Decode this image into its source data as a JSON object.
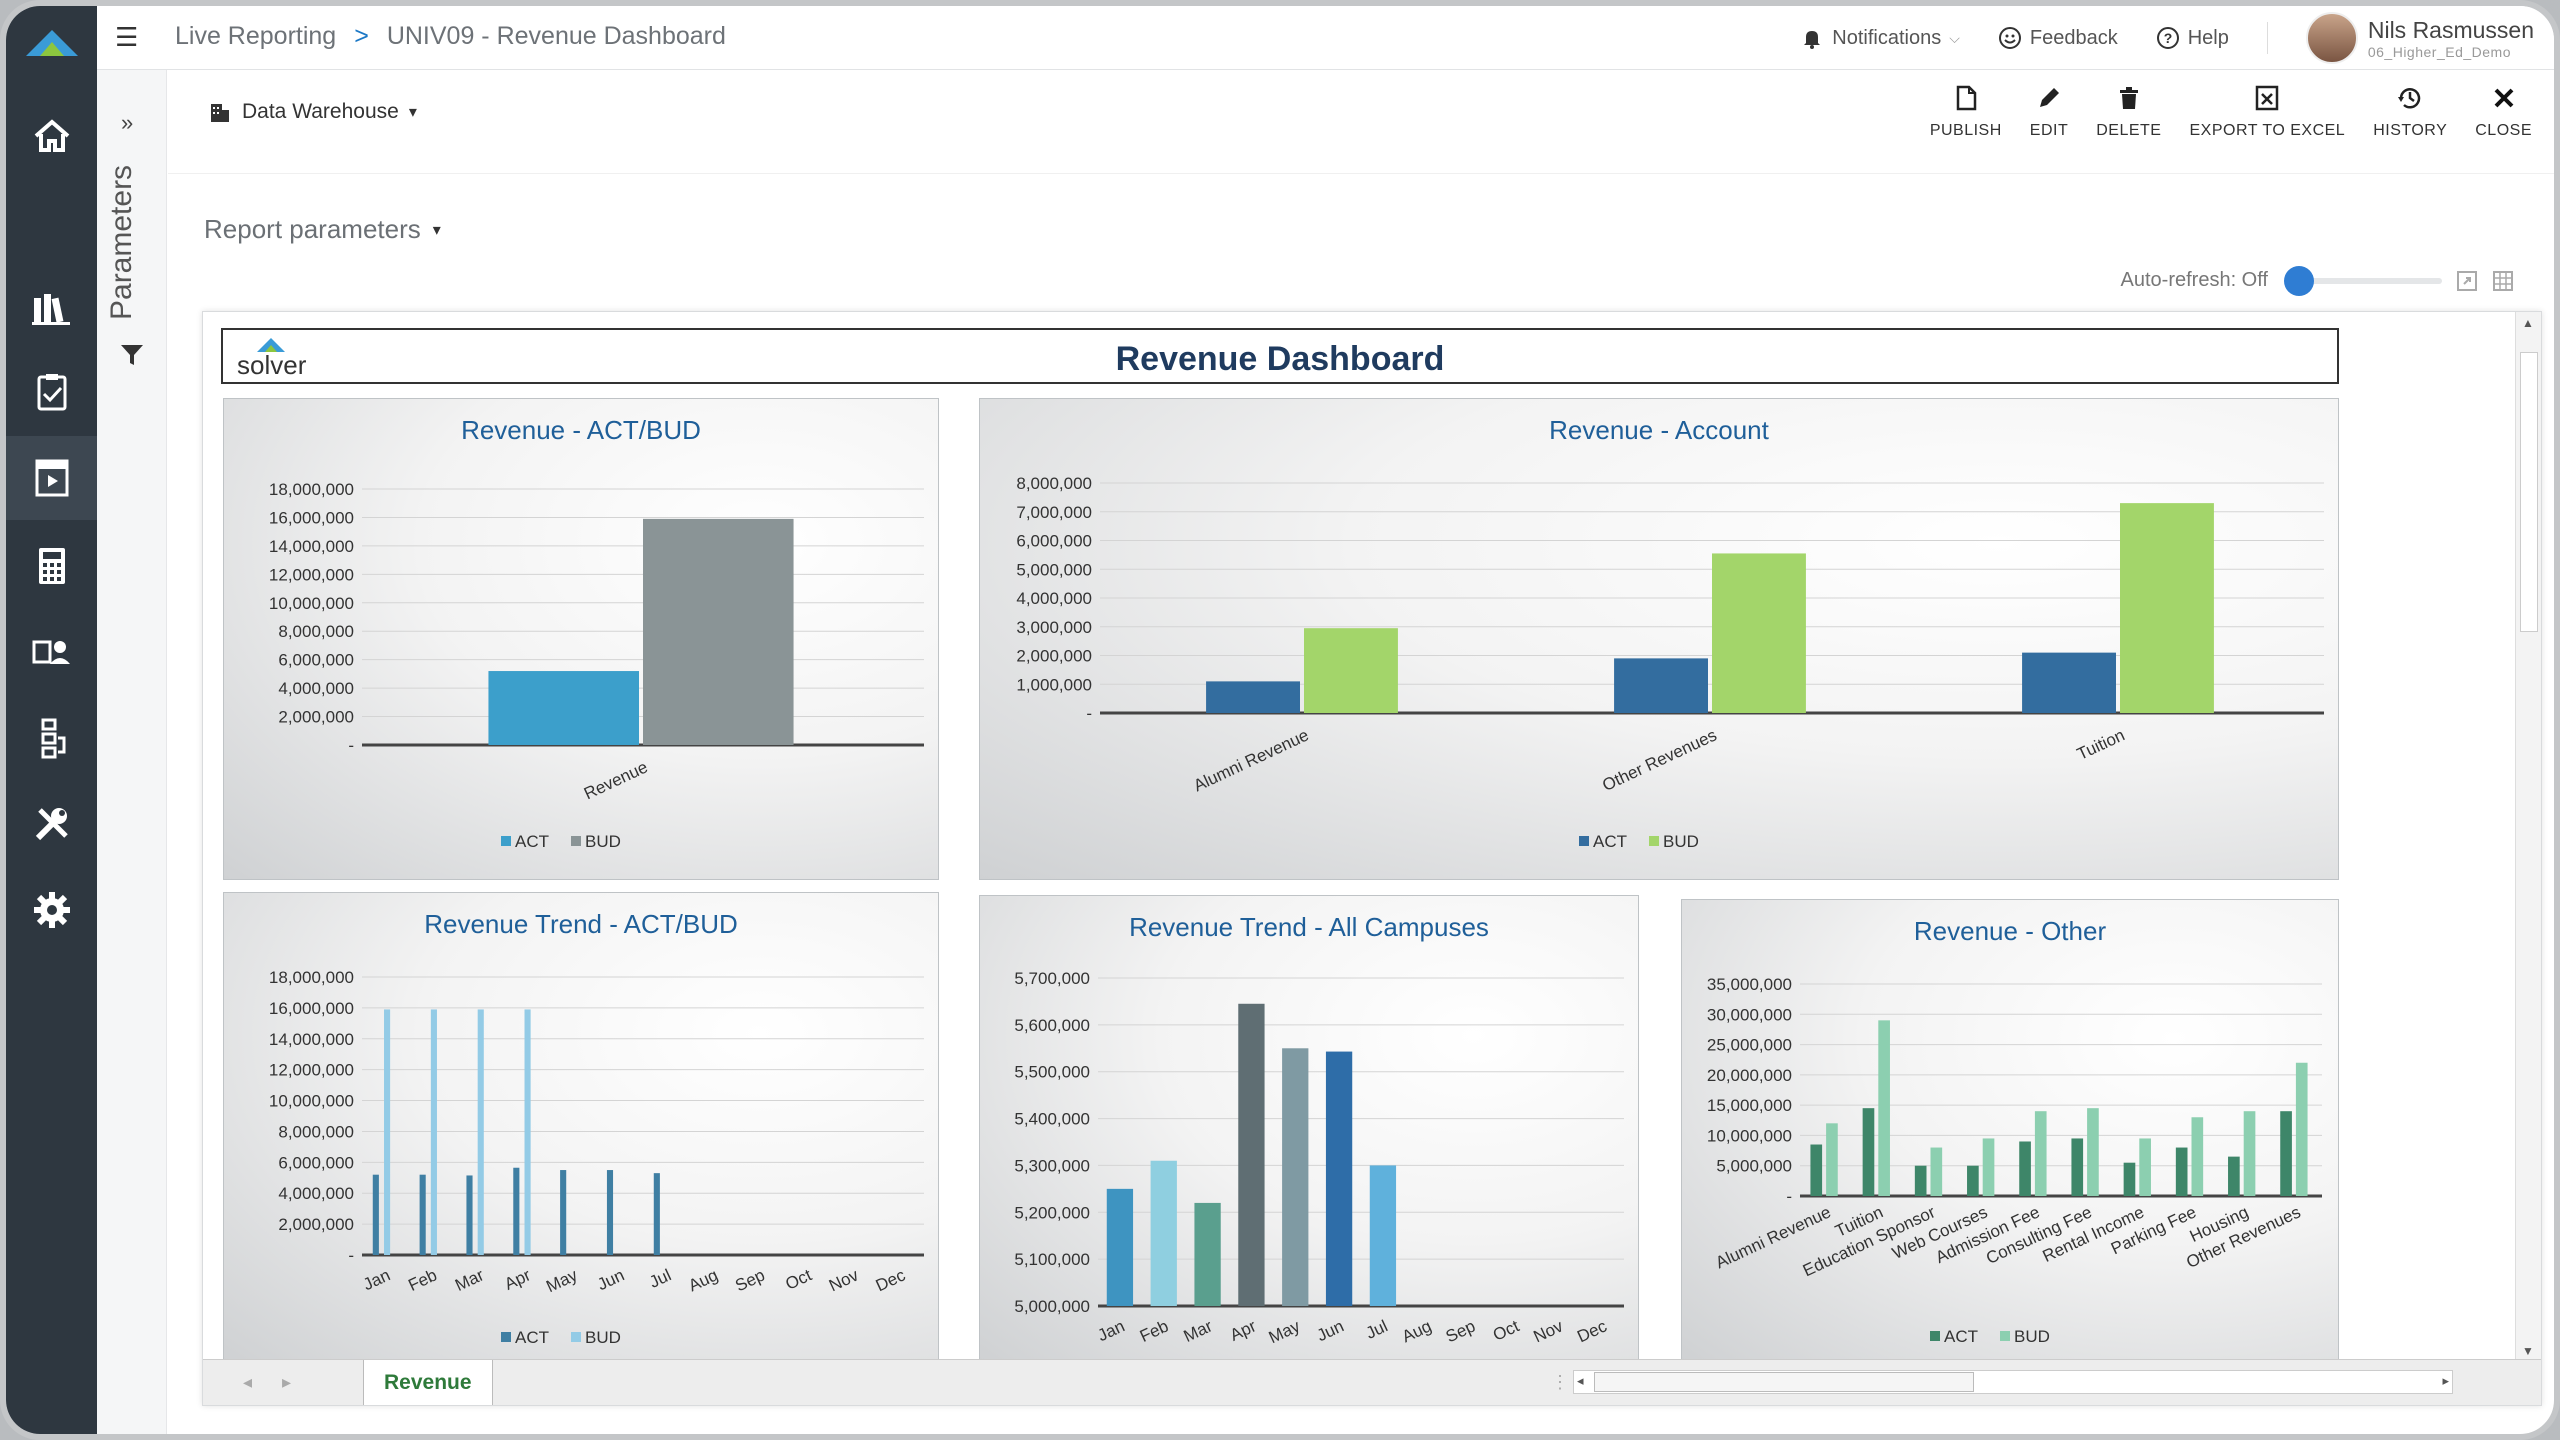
{
  "breadcrumb": {
    "section": "Live Reporting",
    "separator": ">",
    "page": "UNIV09 - Revenue Dashboard"
  },
  "topbar": {
    "notifications": "Notifications",
    "feedback": "Feedback",
    "help": "Help",
    "user_name": "Nils Rasmussen",
    "user_org": "06_Higher_Ed_Demo"
  },
  "sidebar": {
    "items": [
      {
        "icon": "home-icon"
      },
      {
        "icon": "library-icon"
      },
      {
        "icon": "clipboard-check-icon"
      },
      {
        "icon": "report-play-icon",
        "active": true
      },
      {
        "icon": "calculator-icon"
      },
      {
        "icon": "user-document-icon"
      },
      {
        "icon": "hierarchy-icon"
      },
      {
        "icon": "tools-icon"
      },
      {
        "icon": "settings-icon"
      }
    ]
  },
  "params_panel": {
    "label": "Parameters"
  },
  "toolbar": {
    "source": "Data Warehouse",
    "actions": [
      {
        "label": "PUBLISH",
        "icon": "document-icon"
      },
      {
        "label": "EDIT",
        "icon": "pencil-icon"
      },
      {
        "label": "DELETE",
        "icon": "trash-icon"
      },
      {
        "label": "EXPORT TO EXCEL",
        "icon": "excel-icon"
      },
      {
        "label": "HISTORY",
        "icon": "history-icon"
      },
      {
        "label": "CLOSE",
        "icon": "close-icon"
      }
    ]
  },
  "report_parameters": "Report parameters",
  "auto_refresh": "Auto-refresh: Off",
  "sheet": {
    "logo_text": "solver",
    "title": "Revenue Dashboard",
    "tab": "Revenue"
  },
  "colors": {
    "act_blue": "#3c9fcb",
    "bud_gray": "#8a9496",
    "act_navy": "#336d9f",
    "bud_green": "#a3d56a",
    "trend_act": "#3f7fa3",
    "trend_bud": "#93cbe6",
    "other_act": "#3e8669",
    "other_bud": "#8ccfb0"
  },
  "chart_data": [
    {
      "type": "bar",
      "title": "Revenue - ACT/BUD",
      "categories": [
        "Revenue"
      ],
      "series": [
        {
          "name": "ACT",
          "values": [
            5200000
          ]
        },
        {
          "name": "BUD",
          "values": [
            15900000
          ]
        }
      ],
      "ylim": [
        0,
        18000000
      ],
      "yticks": [
        "18,000,000",
        "16,000,000",
        "14,000,000",
        "12,000,000",
        "10,000,000",
        "8,000,000",
        "6,000,000",
        "4,000,000",
        "2,000,000",
        "-"
      ]
    },
    {
      "type": "bar",
      "title": "Revenue - Account",
      "categories": [
        "Alumni Revenue",
        "Other Revenues",
        "Tuition"
      ],
      "series": [
        {
          "name": "ACT",
          "values": [
            1100000,
            1900000,
            2100000
          ]
        },
        {
          "name": "BUD",
          "values": [
            2950000,
            5550000,
            7300000
          ]
        }
      ],
      "ylim": [
        0,
        8000000
      ],
      "yticks": [
        "8,000,000",
        "7,000,000",
        "6,000,000",
        "5,000,000",
        "4,000,000",
        "3,000,000",
        "2,000,000",
        "1,000,000",
        "-"
      ]
    },
    {
      "type": "bar",
      "title": "Revenue Trend - ACT/BUD",
      "categories": [
        "Jan",
        "Feb",
        "Mar",
        "Apr",
        "May",
        "Jun",
        "Jul",
        "Aug",
        "Sep",
        "Oct",
        "Nov",
        "Dec"
      ],
      "series": [
        {
          "name": "ACT",
          "values": [
            5200000,
            5200000,
            5150000,
            5650000,
            5500000,
            5500000,
            5300000,
            null,
            null,
            null,
            null,
            null
          ]
        },
        {
          "name": "BUD",
          "values": [
            15900000,
            15900000,
            15900000,
            15900000,
            null,
            null,
            null,
            null,
            null,
            null,
            null,
            null
          ]
        }
      ],
      "ylim": [
        0,
        18000000
      ],
      "yticks": [
        "18,000,000",
        "16,000,000",
        "14,000,000",
        "12,000,000",
        "10,000,000",
        "8,000,000",
        "6,000,000",
        "4,000,000",
        "2,000,000",
        "-"
      ]
    },
    {
      "type": "bar",
      "title": "Revenue Trend - All Campuses",
      "categories": [
        "Jan",
        "Feb",
        "Mar",
        "Apr",
        "May",
        "Jun",
        "Jul",
        "Aug",
        "Sep",
        "Oct",
        "Nov",
        "Dec"
      ],
      "values": [
        5250000,
        5310000,
        5220000,
        5645000,
        5550000,
        5543000,
        5300000,
        null,
        null,
        null,
        null,
        null
      ],
      "bar_colors": [
        "#3e94c1",
        "#8fcfe0",
        "#5a9f8e",
        "#5f6e73",
        "#7f9aa3",
        "#2e6da8",
        "#5fb1dc"
      ],
      "ylim": [
        5000000,
        5700000
      ],
      "yticks": [
        "5,700,000",
        "5,600,000",
        "5,500,000",
        "5,400,000",
        "5,300,000",
        "5,200,000",
        "5,100,000",
        "5,000,000"
      ]
    },
    {
      "type": "bar",
      "title": "Revenue - Other",
      "categories": [
        "Alumni Revenue",
        "Tuition",
        "Education Sponsor",
        "Web Courses",
        "Admission Fee",
        "Consulting Fee",
        "Rental Income",
        "Parking Fee",
        "Housing",
        "Other Revenues"
      ],
      "series": [
        {
          "name": "ACT",
          "values": [
            8500000,
            14500000,
            5000000,
            5000000,
            9000000,
            9500000,
            5500000,
            8000000,
            6500000,
            14000000
          ]
        },
        {
          "name": "BUD",
          "values": [
            12000000,
            29000000,
            8000000,
            9500000,
            14000000,
            14500000,
            9500000,
            13000000,
            14000000,
            22000000
          ]
        }
      ],
      "ylim": [
        0,
        35000000
      ],
      "yticks": [
        "35,000,000",
        "30,000,000",
        "25,000,000",
        "20,000,000",
        "15,000,000",
        "10,000,000",
        "5,000,000",
        "-"
      ]
    }
  ]
}
